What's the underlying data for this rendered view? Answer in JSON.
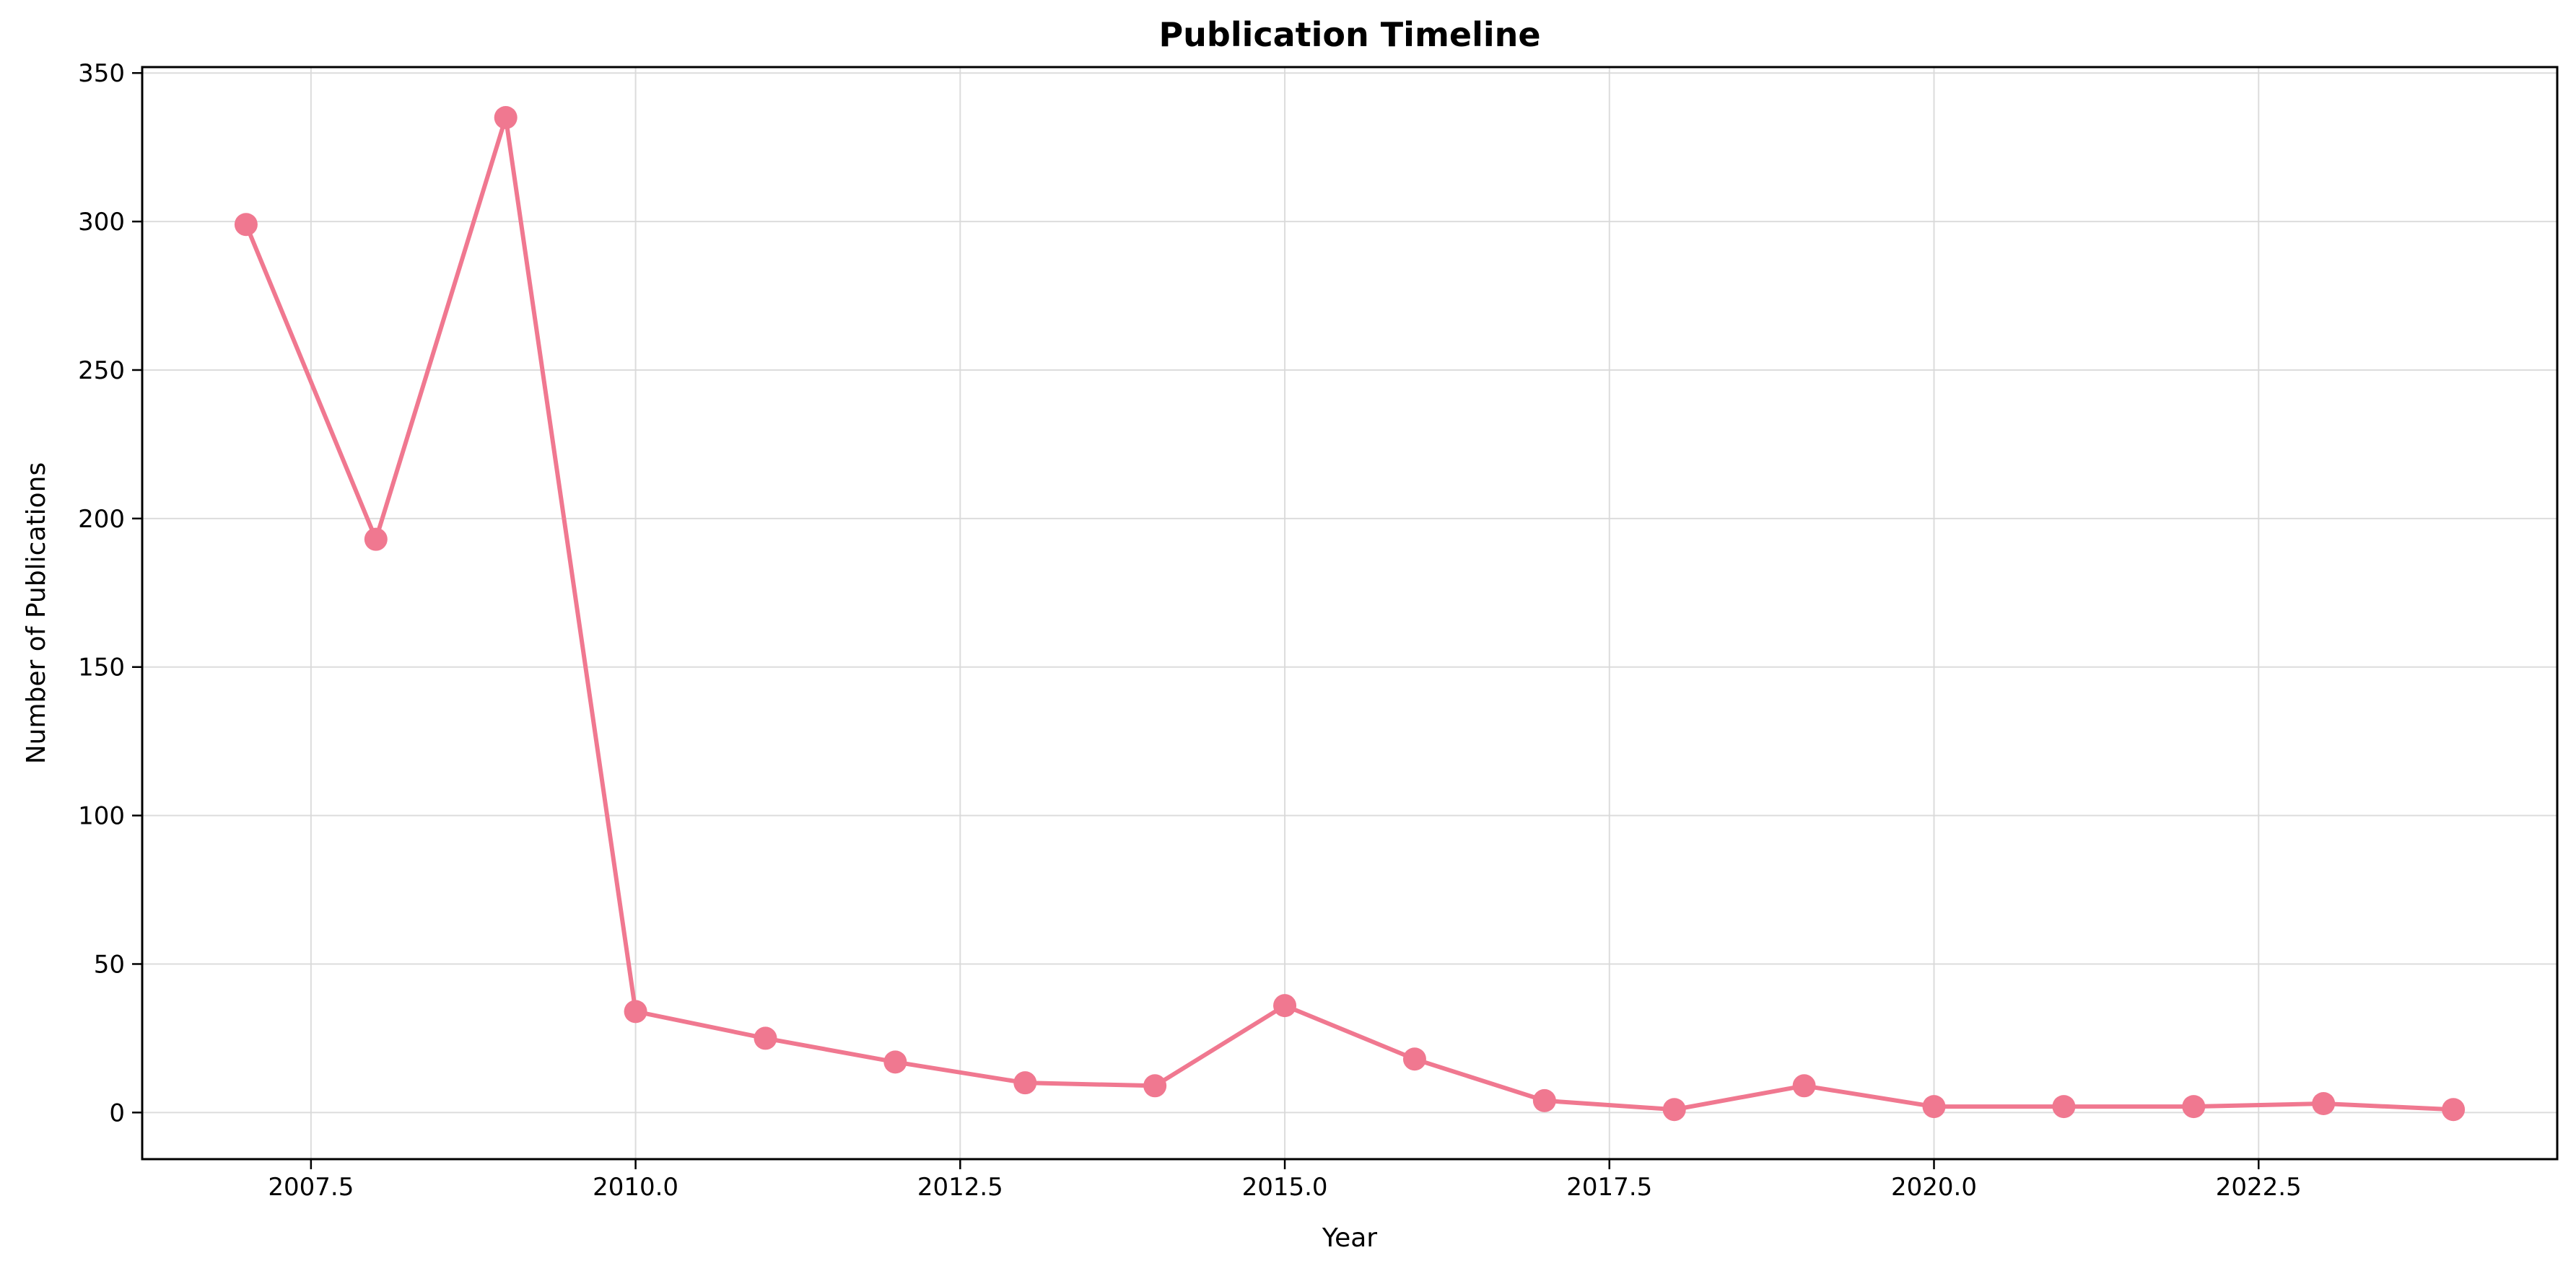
{
  "chart_data": {
    "type": "line",
    "title": "Publication Timeline",
    "xlabel": "Year",
    "ylabel": "Number of Publications",
    "xlim": [
      2006.2,
      2024.8
    ],
    "ylim": [
      -15.7,
      352
    ],
    "x_ticks": [
      2007.5,
      2010.0,
      2012.5,
      2015.0,
      2017.5,
      2020.0,
      2022.5
    ],
    "x_tick_labels": [
      "2007.5",
      "2010.0",
      "2012.5",
      "2015.0",
      "2017.5",
      "2020.0",
      "2022.5"
    ],
    "y_ticks": [
      0,
      50,
      100,
      150,
      200,
      250,
      300,
      350
    ],
    "y_tick_labels": [
      "0",
      "50",
      "100",
      "150",
      "200",
      "250",
      "300",
      "350"
    ],
    "grid": true,
    "series": [
      {
        "color": "#f07890",
        "x": [
          2007,
          2008,
          2009,
          2010,
          2011,
          2012,
          2013,
          2014,
          2015,
          2016,
          2017,
          2018,
          2019,
          2020,
          2021,
          2022,
          2023,
          2024
        ],
        "y": [
          299,
          193,
          335,
          34,
          25,
          17,
          10,
          9,
          36,
          18,
          4,
          1,
          9,
          2,
          2,
          2,
          3,
          1
        ]
      }
    ]
  }
}
